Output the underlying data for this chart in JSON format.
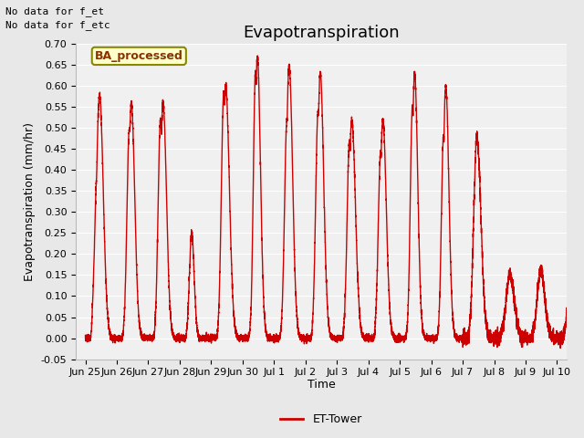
{
  "title": "Evapotranspiration",
  "ylabel": "Evapotranspiration (mm/hr)",
  "xlabel": "Time",
  "ylim": [
    -0.05,
    0.7
  ],
  "line_color": "#cc0000",
  "line_width": 1.0,
  "legend_label": "ET-Tower",
  "legend_box_facecolor": "#ffffcc",
  "legend_box_edge": "#888800",
  "legend_text": "BA_processed",
  "annotation1": "No data for f_et",
  "annotation2": "No data for f_etc",
  "bg_color": "#e8e8e8",
  "plot_bg_color": "#f0f0f0",
  "title_fontsize": 13,
  "axis_fontsize": 9,
  "tick_fontsize": 8,
  "tick_labels": [
    "Jun 25",
    "Jun 26",
    "Jun 27",
    "Jun 28",
    "Jun 29",
    "Jun 30",
    "Jul 1",
    "Jul 2",
    "Jul 3",
    "Jul 4",
    "Jul 5",
    "Jul 6",
    "Jul 7",
    "Jul 8",
    "Jul 9",
    "Jul 10"
  ],
  "tick_positions": [
    0,
    1,
    2,
    3,
    4,
    5,
    6,
    7,
    8,
    9,
    10,
    11,
    12,
    13,
    14,
    15
  ]
}
